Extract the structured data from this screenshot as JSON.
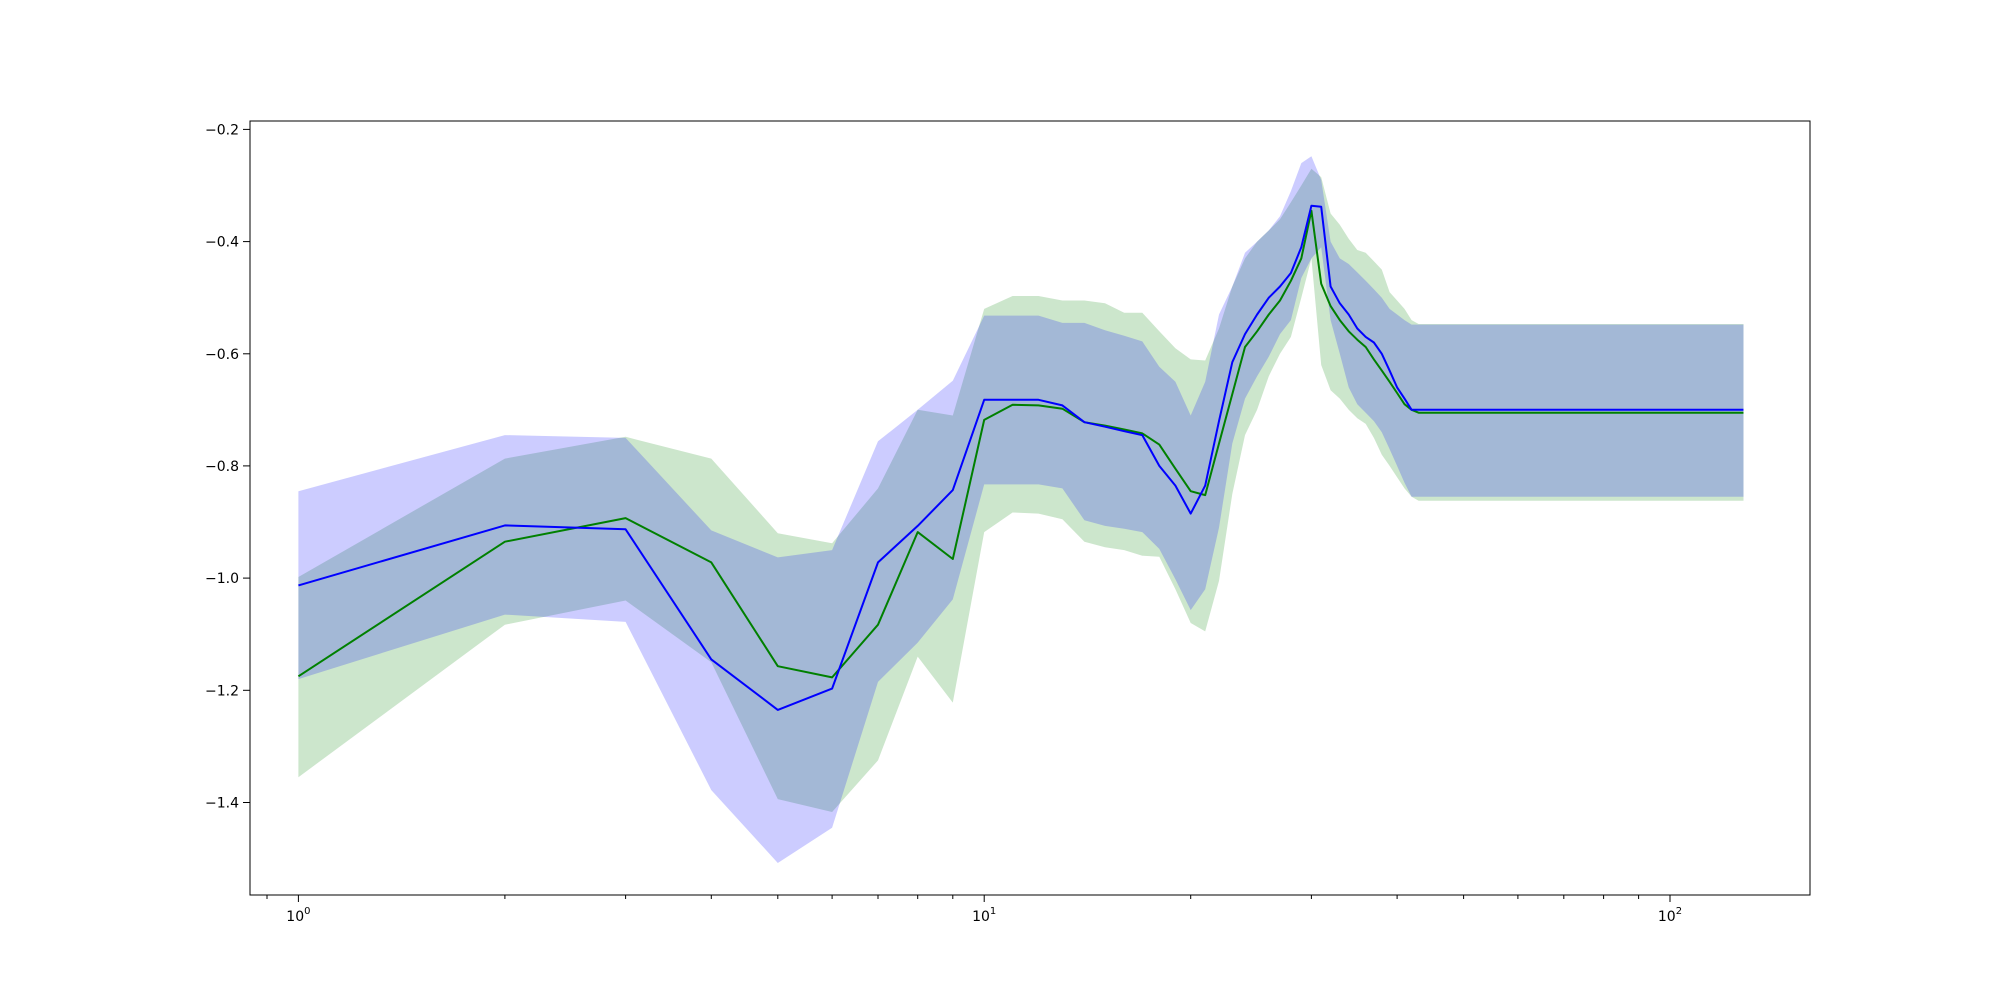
{
  "chart_data": {
    "type": "line",
    "title": "",
    "xlabel": "",
    "ylabel": "",
    "xscale": "log",
    "xlim": [
      0.85,
      160
    ],
    "ylim": [
      -1.565,
      -0.185
    ],
    "grid": false,
    "legend": "none",
    "x_ticks": [
      {
        "value": 1,
        "base": "10",
        "exp": "0"
      },
      {
        "value": 10,
        "base": "10",
        "exp": "1"
      },
      {
        "value": 100,
        "base": "10",
        "exp": "2"
      }
    ],
    "y_ticks": [
      {
        "value": -1.4,
        "label": "−1.4"
      },
      {
        "value": -1.2,
        "label": "−1.2"
      },
      {
        "value": -1.0,
        "label": "−1.0"
      },
      {
        "value": -0.8,
        "label": "−0.8"
      },
      {
        "value": -0.6,
        "label": "−0.6"
      },
      {
        "value": -0.4,
        "label": "−0.4"
      },
      {
        "value": -0.2,
        "label": "−0.2"
      }
    ],
    "series": [
      {
        "color": "#008000",
        "band_color": "#008000",
        "band_opacity": 0.2,
        "x": [
          1,
          2,
          3,
          4,
          5,
          6,
          7,
          8,
          9,
          10,
          11,
          12,
          13,
          14,
          15,
          16,
          17,
          18,
          19,
          20,
          21,
          22,
          23,
          24,
          25,
          26,
          27,
          28,
          29,
          30,
          31,
          32,
          33,
          34,
          35,
          36,
          37,
          38,
          39,
          40,
          41,
          42,
          43,
          44,
          128
        ],
        "y": [
          -1.175,
          -0.935,
          -0.893,
          -0.972,
          -1.157,
          -1.177,
          -1.083,
          -0.918,
          -0.966,
          -0.718,
          -0.691,
          -0.692,
          -0.698,
          -0.722,
          -0.728,
          -0.735,
          -0.742,
          -0.762,
          -0.805,
          -0.845,
          -0.852,
          -0.76,
          -0.672,
          -0.588,
          -0.56,
          -0.53,
          -0.505,
          -0.47,
          -0.43,
          -0.345,
          -0.475,
          -0.515,
          -0.54,
          -0.56,
          -0.575,
          -0.588,
          -0.61,
          -0.63,
          -0.65,
          -0.67,
          -0.69,
          -0.7,
          -0.705,
          -0.705,
          -0.705
        ],
        "lower": [
          -1.355,
          -1.083,
          -1.04,
          -1.15,
          -1.394,
          -1.417,
          -1.325,
          -1.14,
          -1.222,
          -0.918,
          -0.883,
          -0.885,
          -0.895,
          -0.935,
          -0.945,
          -0.95,
          -0.96,
          -0.962,
          -1.02,
          -1.08,
          -1.095,
          -1.005,
          -0.85,
          -0.745,
          -0.7,
          -0.64,
          -0.6,
          -0.57,
          -0.5,
          -0.43,
          -0.62,
          -0.665,
          -0.68,
          -0.7,
          -0.715,
          -0.725,
          -0.75,
          -0.78,
          -0.8,
          -0.82,
          -0.84,
          -0.855,
          -0.862,
          -0.862,
          -0.862
        ],
        "upper": [
          -0.998,
          -0.787,
          -0.748,
          -0.787,
          -0.92,
          -0.938,
          -0.84,
          -0.7,
          -0.71,
          -0.52,
          -0.497,
          -0.497,
          -0.505,
          -0.505,
          -0.51,
          -0.527,
          -0.527,
          -0.56,
          -0.59,
          -0.61,
          -0.612,
          -0.555,
          -0.48,
          -0.43,
          -0.4,
          -0.38,
          -0.36,
          -0.33,
          -0.3,
          -0.27,
          -0.285,
          -0.35,
          -0.37,
          -0.395,
          -0.415,
          -0.42,
          -0.435,
          -0.45,
          -0.49,
          -0.505,
          -0.52,
          -0.54,
          -0.547,
          -0.547,
          -0.547
        ]
      },
      {
        "color": "#0000ff",
        "band_color": "#0000ff",
        "band_opacity": 0.2,
        "x": [
          1,
          2,
          3,
          4,
          5,
          6,
          7,
          8,
          9,
          10,
          11,
          12,
          13,
          14,
          15,
          16,
          17,
          18,
          19,
          20,
          21,
          22,
          23,
          24,
          25,
          26,
          27,
          28,
          29,
          30,
          31,
          32,
          33,
          34,
          35,
          36,
          37,
          38,
          39,
          40,
          41,
          42,
          43,
          44,
          128
        ],
        "y": [
          -1.013,
          -0.906,
          -0.913,
          -1.145,
          -1.235,
          -1.197,
          -0.972,
          -0.907,
          -0.843,
          -0.682,
          -0.682,
          -0.682,
          -0.692,
          -0.722,
          -0.73,
          -0.738,
          -0.745,
          -0.8,
          -0.835,
          -0.885,
          -0.835,
          -0.72,
          -0.615,
          -0.565,
          -0.53,
          -0.5,
          -0.48,
          -0.456,
          -0.41,
          -0.336,
          -0.338,
          -0.48,
          -0.51,
          -0.53,
          -0.555,
          -0.57,
          -0.58,
          -0.6,
          -0.63,
          -0.66,
          -0.68,
          -0.7,
          -0.7,
          -0.7,
          -0.7
        ],
        "lower": [
          -1.18,
          -1.065,
          -1.078,
          -1.378,
          -1.508,
          -1.445,
          -1.185,
          -1.115,
          -1.038,
          -0.833,
          -0.833,
          -0.833,
          -0.84,
          -0.897,
          -0.907,
          -0.912,
          -0.918,
          -0.948,
          -1.002,
          -1.057,
          -1.02,
          -0.91,
          -0.76,
          -0.68,
          -0.64,
          -0.605,
          -0.565,
          -0.54,
          -0.465,
          -0.43,
          -0.41,
          -0.54,
          -0.6,
          -0.66,
          -0.69,
          -0.705,
          -0.72,
          -0.74,
          -0.77,
          -0.8,
          -0.83,
          -0.855,
          -0.855,
          -0.855,
          -0.855
        ],
        "upper": [
          -0.845,
          -0.745,
          -0.75,
          -0.915,
          -0.963,
          -0.95,
          -0.756,
          -0.7,
          -0.648,
          -0.532,
          -0.532,
          -0.532,
          -0.545,
          -0.545,
          -0.558,
          -0.568,
          -0.578,
          -0.623,
          -0.65,
          -0.71,
          -0.65,
          -0.53,
          -0.48,
          -0.42,
          -0.4,
          -0.38,
          -0.355,
          -0.31,
          -0.26,
          -0.248,
          -0.29,
          -0.4,
          -0.43,
          -0.44,
          -0.455,
          -0.47,
          -0.485,
          -0.5,
          -0.52,
          -0.53,
          -0.54,
          -0.548,
          -0.548,
          -0.548,
          -0.548
        ]
      }
    ]
  }
}
